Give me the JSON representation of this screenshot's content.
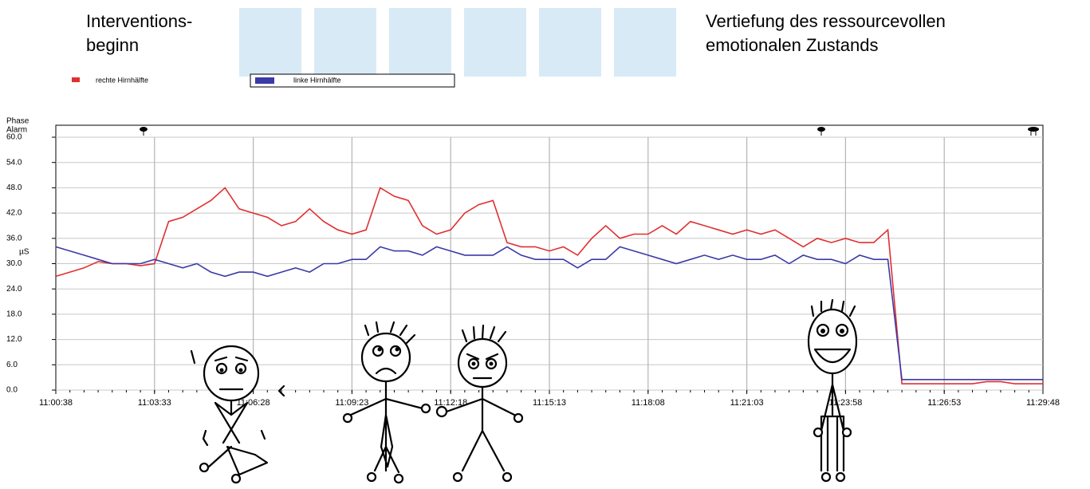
{
  "chart_data": {
    "type": "line",
    "annotations": [
      "Interventions-",
      "beginn",
      "Vertiefung des ressourcevollen",
      "emotionalen Zustands"
    ],
    "band_labels": [
      "Phase",
      "Alarm"
    ],
    "ylabel": "µS",
    "x": [
      "11:00:38",
      "11:01:03",
      "11:01:28",
      "11:01:53",
      "11:02:18",
      "11:02:43",
      "11:03:08",
      "11:03:33",
      "11:03:58",
      "11:04:23",
      "11:04:48",
      "11:05:13",
      "11:05:38",
      "11:06:03",
      "11:06:28",
      "11:06:53",
      "11:07:18",
      "11:07:43",
      "11:08:08",
      "11:08:33",
      "11:08:58",
      "11:09:23",
      "11:09:48",
      "11:10:13",
      "11:10:38",
      "11:11:03",
      "11:11:28",
      "11:11:53",
      "11:12:18",
      "11:12:43",
      "11:13:08",
      "11:13:33",
      "11:13:58",
      "11:14:23",
      "11:14:48",
      "11:15:13",
      "11:15:38",
      "11:16:03",
      "11:16:28",
      "11:16:53",
      "11:17:18",
      "11:17:43",
      "11:18:08",
      "11:18:33",
      "11:18:58",
      "11:19:23",
      "11:19:48",
      "11:20:13",
      "11:20:38",
      "11:21:03",
      "11:21:28",
      "11:21:53",
      "11:22:18",
      "11:22:43",
      "11:23:08",
      "11:23:33",
      "11:23:58",
      "11:24:23",
      "11:24:48",
      "11:25:13",
      "11:25:38",
      "11:26:03",
      "11:26:28",
      "11:26:53",
      "11:27:18",
      "11:27:43",
      "11:28:08",
      "11:28:33",
      "11:28:58",
      "11:29:23",
      "11:29:48"
    ],
    "series": [
      {
        "name": "rechte Hirnhälfte",
        "color": "#e03030",
        "values": [
          27,
          28,
          29,
          30.5,
          30,
          30,
          29.5,
          30,
          40,
          41,
          43,
          45,
          48,
          43,
          42,
          41,
          39,
          40,
          43,
          40,
          38,
          37,
          38,
          48,
          46,
          45,
          39,
          37,
          38,
          42,
          44,
          45,
          35,
          34,
          34,
          33,
          34,
          32,
          36,
          39,
          36,
          37,
          37,
          39,
          37,
          40,
          39,
          38,
          37,
          38,
          37,
          38,
          36,
          34,
          36,
          35,
          36,
          35,
          35,
          38,
          1.5,
          1.5,
          1.5,
          1.5,
          1.5,
          1.5,
          2,
          2,
          1.5,
          1.5,
          1.5
        ]
      },
      {
        "name": "linke Hirnhälfte",
        "color": "#3a3aa8",
        "values": [
          34,
          33,
          32,
          31,
          30,
          30,
          30,
          31,
          30,
          29,
          30,
          28,
          27,
          28,
          28,
          27,
          28,
          29,
          28,
          30,
          30,
          31,
          31,
          34,
          33,
          33,
          32,
          34,
          33,
          32,
          32,
          32,
          34,
          32,
          31,
          31,
          31,
          29,
          31,
          31,
          34,
          33,
          32,
          31,
          30,
          31,
          32,
          31,
          32,
          31,
          31,
          32,
          30,
          32,
          31,
          31,
          30,
          32,
          31,
          31,
          2.5,
          2.5,
          2.5,
          2.5,
          2.5,
          2.5,
          2.5,
          2.5,
          2.5,
          2.5,
          2.5
        ]
      }
    ],
    "xlim": [
      "11:00:38",
      "11:29:48"
    ],
    "xticks": [
      "11:00:38",
      "11:03:33",
      "11:06:28",
      "11:09:23",
      "11:12:18",
      "11:15:13",
      "11:18:08",
      "11:21:03",
      "11:23:58",
      "11:26:53",
      "11:29:48"
    ],
    "ylim": [
      0,
      60
    ],
    "yticks": [
      {
        "value": 0,
        "label": "0.0"
      },
      {
        "value": 6,
        "label": "6.0"
      },
      {
        "value": 12,
        "label": "12.0"
      },
      {
        "value": 18,
        "label": "18.0"
      },
      {
        "value": 24,
        "label": "24.0"
      },
      {
        "value": 30,
        "label": "30.0"
      },
      {
        "value": 36,
        "label": "36.0"
      },
      {
        "value": 42,
        "label": "42.0"
      },
      {
        "value": 48,
        "label": "48.0"
      },
      {
        "value": 54,
        "label": "54.0"
      },
      {
        "value": 60,
        "label": "60.0"
      }
    ],
    "grid": true
  }
}
